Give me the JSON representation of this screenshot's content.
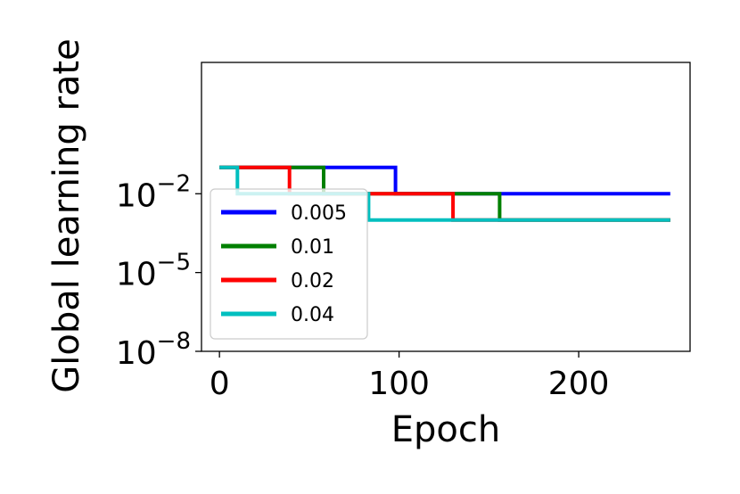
{
  "chart_data": {
    "type": "line",
    "xlabel": "Epoch",
    "ylabel": "Global learning rate",
    "xlim": [
      -10,
      262
    ],
    "ylim_log10": [
      -8,
      3
    ],
    "x_ticks": [
      {
        "value": 0,
        "label": "0"
      },
      {
        "value": 100,
        "label": "100"
      },
      {
        "value": 200,
        "label": "200"
      }
    ],
    "y_ticks": [
      {
        "value": -2,
        "base": "10",
        "exp": "−2"
      },
      {
        "value": -5,
        "base": "10",
        "exp": "−5"
      },
      {
        "value": -8,
        "base": "10",
        "exp": "−8"
      }
    ],
    "y_scale": "log",
    "grid": false,
    "legend": {
      "position": "lower-left"
    },
    "series": [
      {
        "name": "0.005",
        "color": "#0000ff",
        "x": [
          0,
          98,
          98,
          251
        ],
        "y": [
          0.1,
          0.1,
          0.01,
          0.01
        ]
      },
      {
        "name": "0.01",
        "color": "#008000",
        "x": [
          0,
          58,
          58,
          156,
          156,
          251
        ],
        "y": [
          0.1,
          0.1,
          0.01,
          0.01,
          0.001,
          0.001
        ]
      },
      {
        "name": "0.02",
        "color": "#ff0000",
        "x": [
          0,
          39,
          39,
          130,
          130,
          251
        ],
        "y": [
          0.1,
          0.1,
          0.01,
          0.01,
          0.001,
          0.001
        ]
      },
      {
        "name": "0.04",
        "color": "#00bfbf",
        "x": [
          0,
          10,
          10,
          83,
          83,
          251
        ],
        "y": [
          0.1,
          0.1,
          0.01,
          0.01,
          0.001,
          0.001
        ]
      }
    ]
  }
}
